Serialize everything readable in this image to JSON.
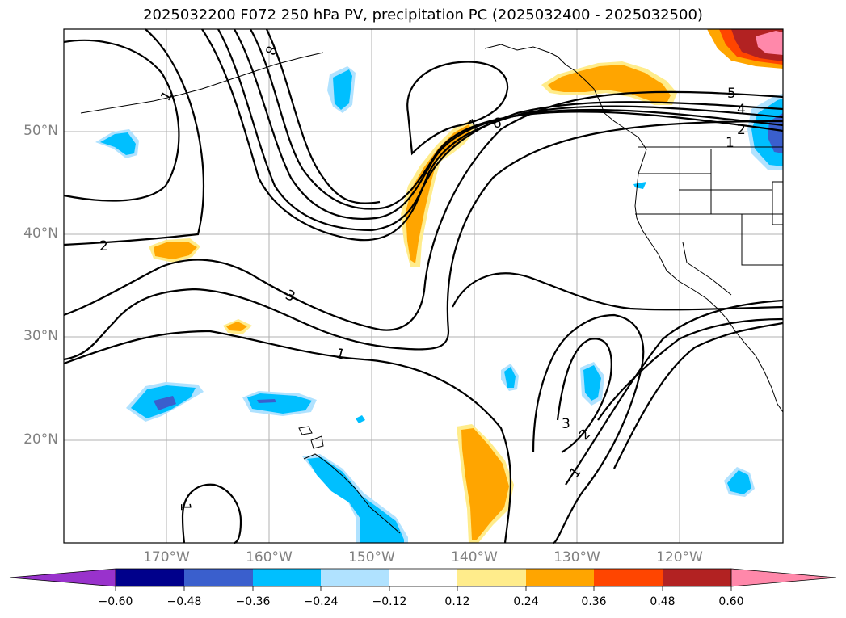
{
  "title": "2025032200 F072 250 hPa PV, precipitation PC (2025032400 - 2025032500)",
  "map": {
    "lat_labels": [
      {
        "text": "50°N",
        "lat": 50
      },
      {
        "text": "40°N",
        "lat": 40
      },
      {
        "text": "30°N",
        "lat": 30
      },
      {
        "text": "20°N",
        "lat": 20
      }
    ],
    "lon_labels": [
      {
        "text": "170°W",
        "lon": -170
      },
      {
        "text": "160°W",
        "lon": -160
      },
      {
        "text": "150°W",
        "lon": -150
      },
      {
        "text": "140°W",
        "lon": -140
      },
      {
        "text": "130°W",
        "lon": -130
      },
      {
        "text": "120°W",
        "lon": -120
      }
    ],
    "contour_labels": [
      "8",
      "1",
      "7",
      "6",
      "5",
      "4",
      "2",
      "1",
      "2",
      "3",
      "1",
      "3",
      "2",
      "1",
      "1"
    ]
  },
  "colorbar": {
    "ticks": [
      "−0.60",
      "−0.48",
      "−0.36",
      "−0.24",
      "−0.12",
      "0.12",
      "0.24",
      "0.36",
      "0.48",
      "0.60"
    ],
    "colors": [
      "#9932cc",
      "#00008b",
      "#3a5fcd",
      "#00bfff",
      "#b0e2ff",
      "#ffffff",
      "#ffec8b",
      "#ffa500",
      "#ff4500",
      "#b22222",
      "#ff88aa",
      "#ff88aa"
    ]
  }
}
